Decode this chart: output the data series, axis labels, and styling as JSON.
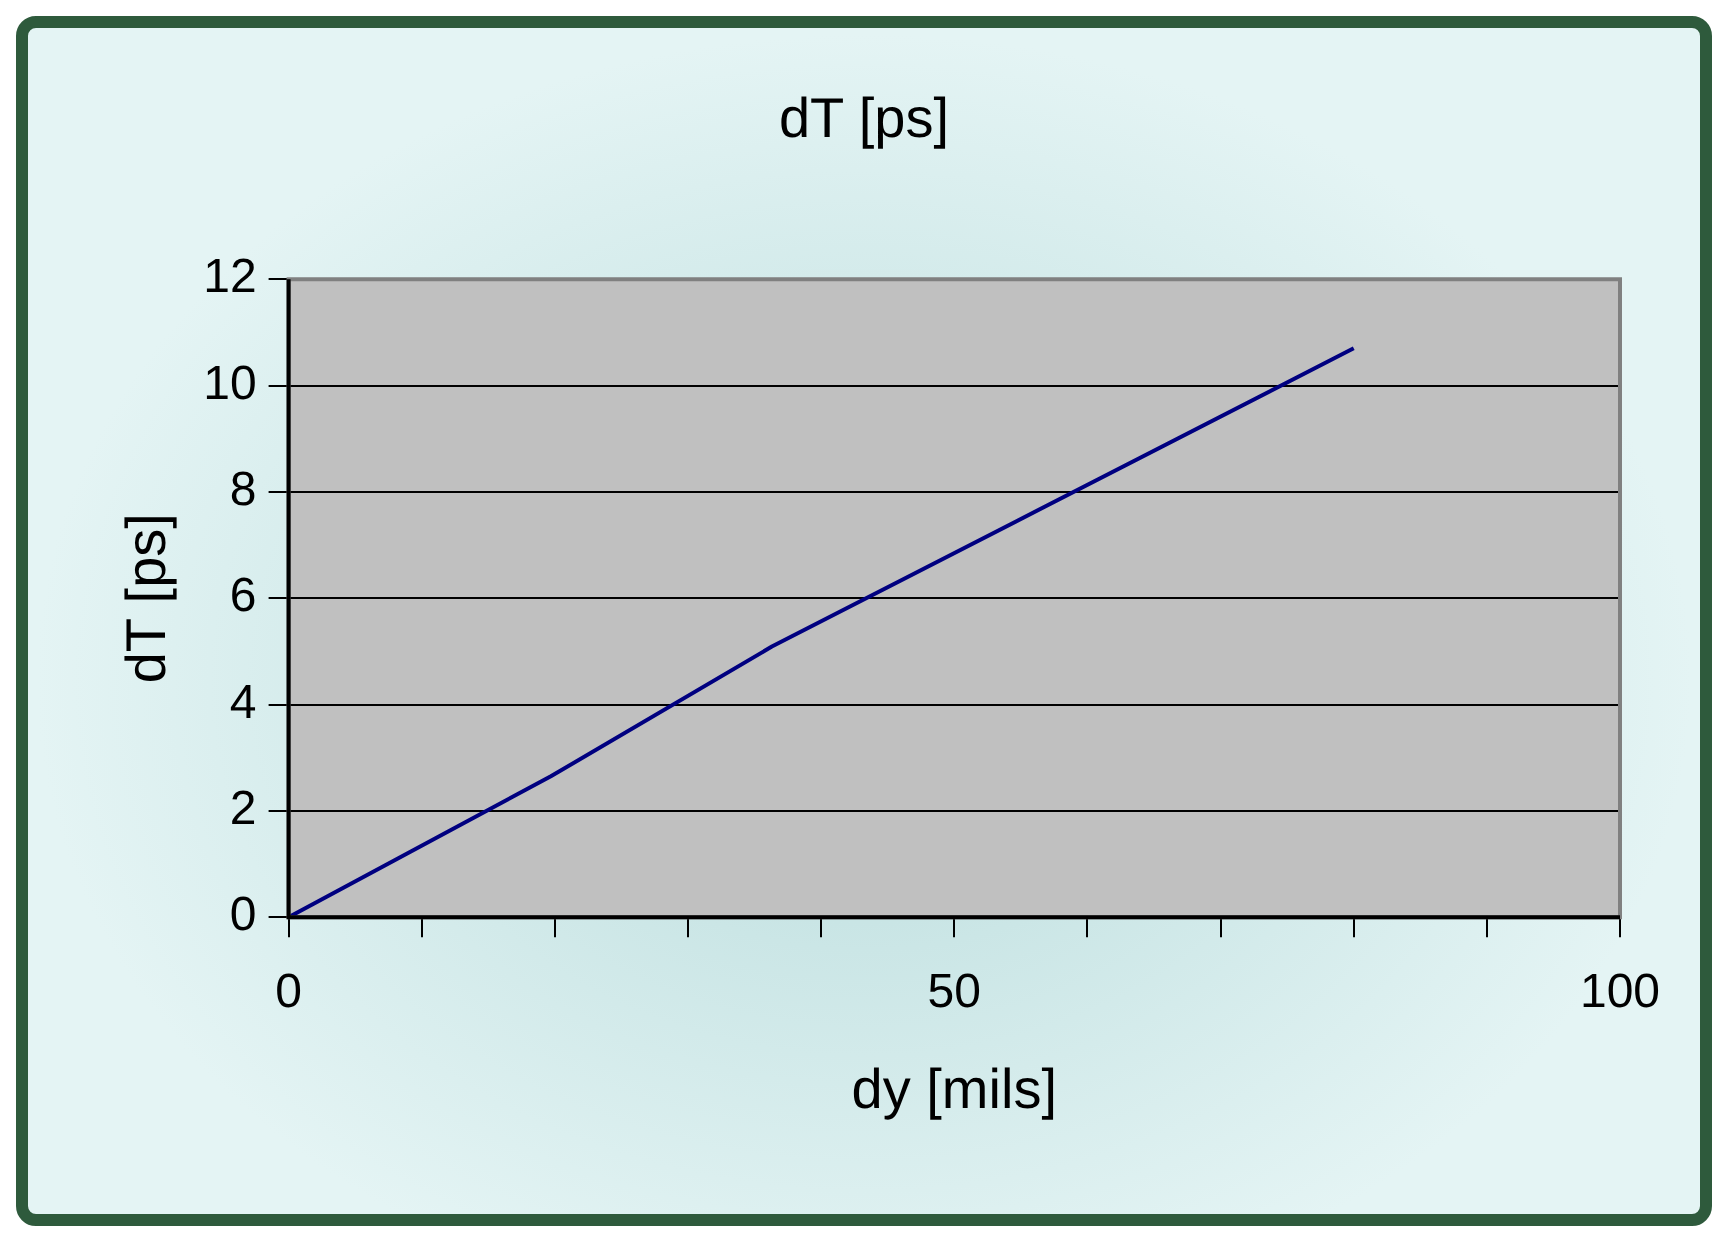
{
  "chart_data": {
    "type": "line",
    "title": "dT [ps]",
    "xlabel": "dy [mils]",
    "ylabel": "dT [ps]",
    "x": [
      0,
      19.7,
      36.3,
      80
    ],
    "series": [
      {
        "color": "#000080",
        "values": [
          0,
          2.65,
          5.09,
          10.7
        ]
      }
    ],
    "xlim": [
      0,
      100
    ],
    "xticks": [
      0,
      {
        "value": 10,
        "label": null
      },
      {
        "value": 20,
        "label": null
      },
      {
        "value": 30,
        "label": null
      },
      {
        "value": 40,
        "label": null
      },
      50,
      {
        "value": 60,
        "label": null
      },
      {
        "value": 70,
        "label": null
      },
      {
        "value": 80,
        "label": null
      },
      {
        "value": 90,
        "label": null
      },
      100
    ],
    "ylim": [
      0,
      12
    ],
    "yticks": [
      0,
      2,
      4,
      6,
      8,
      10,
      12
    ],
    "grid": "y",
    "legend": false,
    "marker": "none",
    "line_style": "solid"
  }
}
